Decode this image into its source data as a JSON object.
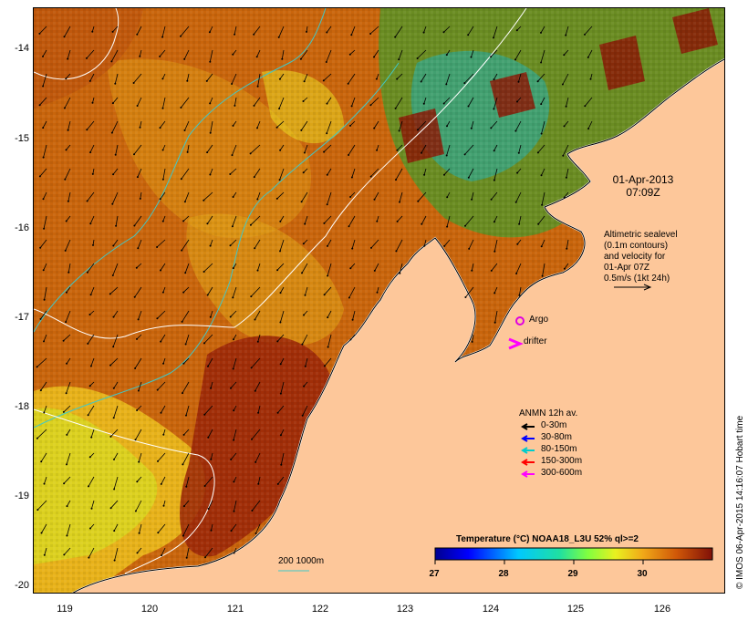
{
  "map": {
    "lat_labels": [
      "-14",
      "-15",
      "-16",
      "-17",
      "-18",
      "-19",
      "-20"
    ],
    "lon_labels": [
      "119",
      "120",
      "121",
      "122",
      "123",
      "124",
      "125",
      "126"
    ],
    "date_line1": "01-Apr-2013",
    "date_line2": "07:09Z",
    "altimetric_lines": [
      "Altimetric sealevel",
      "(0.1m contours)",
      "and velocity for",
      "01-Apr 07Z",
      "0.5m/s (1kt 24h)"
    ],
    "argo_label": "Argo",
    "drifter_label": "drifter",
    "anmn_title": "ANMN 12h av.",
    "anmn_items": [
      {
        "label": "0-30m",
        "color": "#000000"
      },
      {
        "label": "30-80m",
        "color": "#0000ff"
      },
      {
        "label": "80-150m",
        "color": "#00cccc"
      },
      {
        "label": "150-300m",
        "color": "#ff0000"
      },
      {
        "label": "300-600m",
        "color": "#ff00ff"
      }
    ],
    "depth_label": "200  1000m",
    "colorbar_title": "Temperature (°C) NOAA18_L3U 52% ql>=2",
    "colorbar_ticks": [
      "27",
      "28",
      "29",
      "30"
    ],
    "stamp": "© IMOS 06-Apr-2015 14:16:07 Hobart time",
    "colors": {
      "land": "#fdc79a",
      "sea_warm": "#c45a08",
      "sea_hot": "#8a1a06",
      "sea_mid": "#e4a019",
      "sea_cool": "#d8d820",
      "contour_cyan": "#40c8c8",
      "contour_white": "#ffffff"
    }
  }
}
